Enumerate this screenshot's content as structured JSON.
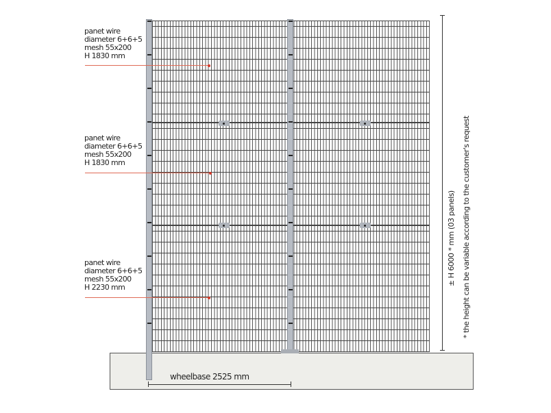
{
  "panels": [
    {
      "line1": "panet wire",
      "line2": "diameter 6+6+5",
      "line3": "mesh 55x200",
      "line4": "H 1830 mm"
    },
    {
      "line1": "panet wire",
      "line2": "diameter 6+6+5",
      "line3": "mesh 55x200",
      "line4": "H 1830 mm"
    },
    {
      "line1": "panet wire",
      "line2": "diameter 6+6+5",
      "line3": "mesh 55x200",
      "line4": "H 2230 mm"
    }
  ],
  "height_dimension": "± H 6000 * mm (03 panels)",
  "height_note": "* the height can be variable according to the customer's request",
  "wheelbase": "wheelbase 2525 mm",
  "colors": {
    "leader": "#d43a2a",
    "post": "#b7bcc4",
    "ground": "#eeeeea"
  }
}
